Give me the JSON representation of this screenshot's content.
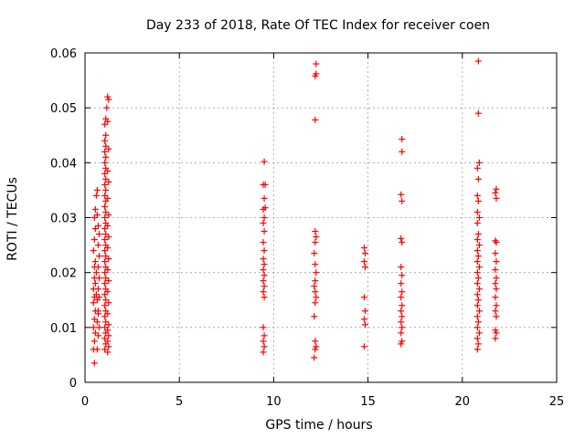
{
  "chart_data": {
    "type": "scatter",
    "title": "Day 233 of 2018, Rate Of TEC Index for receiver coen",
    "xlabel": "GPS time / hours",
    "ylabel": "ROTI / TECUs",
    "xlim": [
      0,
      25
    ],
    "ylim": [
      0,
      0.06
    ],
    "xticks": [
      "0",
      "5",
      "10",
      "15",
      "20",
      "25"
    ],
    "yticks": [
      "0",
      "0.01",
      "0.02",
      "0.03",
      "0.04",
      "0.05",
      "0.06"
    ],
    "grid": true,
    "marker": "+",
    "color": "#ff0000",
    "series": [
      {
        "points": [
          [
            0.5,
            0.0035
          ],
          [
            0.45,
            0.006
          ],
          [
            0.5,
            0.0075
          ],
          [
            0.55,
            0.009
          ],
          [
            0.45,
            0.01
          ],
          [
            0.5,
            0.0115
          ],
          [
            0.55,
            0.013
          ],
          [
            0.45,
            0.0145
          ],
          [
            0.5,
            0.0155
          ],
          [
            0.6,
            0.016
          ],
          [
            0.45,
            0.017
          ],
          [
            0.55,
            0.018
          ],
          [
            0.5,
            0.019
          ],
          [
            0.6,
            0.02
          ],
          [
            0.5,
            0.021
          ],
          [
            0.55,
            0.022
          ],
          [
            0.45,
            0.024
          ],
          [
            0.5,
            0.026
          ],
          [
            0.55,
            0.028
          ],
          [
            0.5,
            0.03
          ],
          [
            0.55,
            0.0315
          ],
          [
            0.6,
            0.034
          ],
          [
            0.65,
            0.035
          ],
          [
            0.65,
            0.006
          ],
          [
            0.7,
            0.0085
          ],
          [
            0.65,
            0.011
          ],
          [
            0.7,
            0.013
          ],
          [
            0.65,
            0.015
          ],
          [
            0.7,
            0.017
          ],
          [
            0.75,
            0.019
          ],
          [
            0.7,
            0.021
          ],
          [
            0.75,
            0.023
          ],
          [
            0.7,
            0.025
          ],
          [
            0.75,
            0.027
          ],
          [
            0.7,
            0.0285
          ],
          [
            0.65,
            0.0305
          ],
          [
            0.75,
            0.0155
          ],
          [
            0.7,
            0.0125
          ],
          [
            0.75,
            0.01
          ],
          [
            1.05,
            0.006
          ],
          [
            1.1,
            0.007
          ],
          [
            1.05,
            0.008
          ],
          [
            1.1,
            0.009
          ],
          [
            1.05,
            0.01
          ],
          [
            1.1,
            0.011
          ],
          [
            1.05,
            0.012
          ],
          [
            1.1,
            0.013
          ],
          [
            1.05,
            0.014
          ],
          [
            1.1,
            0.015
          ],
          [
            1.05,
            0.016
          ],
          [
            1.1,
            0.017
          ],
          [
            1.05,
            0.018
          ],
          [
            1.1,
            0.019
          ],
          [
            1.05,
            0.02
          ],
          [
            1.1,
            0.021
          ],
          [
            1.05,
            0.022
          ],
          [
            1.1,
            0.023
          ],
          [
            1.05,
            0.024
          ],
          [
            1.1,
            0.025
          ],
          [
            1.05,
            0.026
          ],
          [
            1.1,
            0.027
          ],
          [
            1.05,
            0.028
          ],
          [
            1.1,
            0.029
          ],
          [
            1.05,
            0.03
          ],
          [
            1.1,
            0.031
          ],
          [
            1.05,
            0.032
          ],
          [
            1.1,
            0.033
          ],
          [
            1.05,
            0.034
          ],
          [
            1.1,
            0.035
          ],
          [
            1.05,
            0.036
          ],
          [
            1.1,
            0.037
          ],
          [
            1.05,
            0.038
          ],
          [
            1.1,
            0.039
          ],
          [
            1.05,
            0.04
          ],
          [
            1.1,
            0.041
          ],
          [
            1.05,
            0.042
          ],
          [
            1.1,
            0.043
          ],
          [
            1.05,
            0.044
          ],
          [
            1.1,
            0.045
          ],
          [
            1.05,
            0.047
          ],
          [
            1.1,
            0.048
          ],
          [
            1.15,
            0.05
          ],
          [
            1.2,
            0.052
          ],
          [
            1.25,
            0.0515
          ],
          [
            1.2,
            0.0055
          ],
          [
            1.25,
            0.0065
          ],
          [
            1.2,
            0.0075
          ],
          [
            1.25,
            0.0085
          ],
          [
            1.2,
            0.0095
          ],
          [
            1.25,
            0.0105
          ],
          [
            1.2,
            0.0125
          ],
          [
            1.25,
            0.0145
          ],
          [
            1.2,
            0.0165
          ],
          [
            1.25,
            0.0185
          ],
          [
            1.2,
            0.0205
          ],
          [
            1.25,
            0.0225
          ],
          [
            1.2,
            0.0245
          ],
          [
            1.25,
            0.0265
          ],
          [
            1.2,
            0.0285
          ],
          [
            1.25,
            0.0305
          ],
          [
            1.2,
            0.0335
          ],
          [
            1.25,
            0.0365
          ],
          [
            1.2,
            0.0385
          ],
          [
            1.25,
            0.0425
          ],
          [
            1.2,
            0.0475
          ],
          [
            9.45,
            0.0055
          ],
          [
            9.5,
            0.0065
          ],
          [
            9.45,
            0.0075
          ],
          [
            9.5,
            0.0085
          ],
          [
            9.45,
            0.01
          ],
          [
            9.5,
            0.0155
          ],
          [
            9.45,
            0.0165
          ],
          [
            9.5,
            0.0175
          ],
          [
            9.45,
            0.0185
          ],
          [
            9.5,
            0.0195
          ],
          [
            9.45,
            0.0205
          ],
          [
            9.5,
            0.0215
          ],
          [
            9.45,
            0.0225
          ],
          [
            9.5,
            0.024
          ],
          [
            9.45,
            0.0255
          ],
          [
            9.5,
            0.0275
          ],
          [
            9.45,
            0.029
          ],
          [
            9.5,
            0.03
          ],
          [
            9.45,
            0.0315
          ],
          [
            9.55,
            0.0318
          ],
          [
            9.5,
            0.0335
          ],
          [
            9.45,
            0.036
          ],
          [
            9.55,
            0.036
          ],
          [
            9.5,
            0.0402
          ],
          [
            12.15,
            0.0045
          ],
          [
            12.2,
            0.006
          ],
          [
            12.25,
            0.0065
          ],
          [
            12.2,
            0.0075
          ],
          [
            12.15,
            0.012
          ],
          [
            12.2,
            0.0145
          ],
          [
            12.25,
            0.0155
          ],
          [
            12.2,
            0.0165
          ],
          [
            12.15,
            0.0175
          ],
          [
            12.2,
            0.0185
          ],
          [
            12.25,
            0.02
          ],
          [
            12.2,
            0.0215
          ],
          [
            12.15,
            0.0235
          ],
          [
            12.2,
            0.0255
          ],
          [
            12.25,
            0.0265
          ],
          [
            12.2,
            0.0275
          ],
          [
            12.2,
            0.0478
          ],
          [
            12.2,
            0.0558
          ],
          [
            12.25,
            0.0562
          ],
          [
            12.25,
            0.058
          ],
          [
            14.8,
            0.0065
          ],
          [
            14.85,
            0.0105
          ],
          [
            14.8,
            0.0115
          ],
          [
            14.85,
            0.013
          ],
          [
            14.8,
            0.0155
          ],
          [
            14.85,
            0.021
          ],
          [
            14.8,
            0.022
          ],
          [
            14.85,
            0.0235
          ],
          [
            14.8,
            0.0245
          ],
          [
            16.75,
            0.007
          ],
          [
            16.8,
            0.0075
          ],
          [
            16.75,
            0.009
          ],
          [
            16.8,
            0.01
          ],
          [
            16.75,
            0.011
          ],
          [
            16.8,
            0.012
          ],
          [
            16.75,
            0.013
          ],
          [
            16.8,
            0.014
          ],
          [
            16.75,
            0.0155
          ],
          [
            16.8,
            0.0165
          ],
          [
            16.75,
            0.018
          ],
          [
            16.8,
            0.0195
          ],
          [
            16.75,
            0.021
          ],
          [
            16.8,
            0.0255
          ],
          [
            16.75,
            0.0262
          ],
          [
            16.8,
            0.033
          ],
          [
            16.75,
            0.0342
          ],
          [
            16.8,
            0.042
          ],
          [
            16.8,
            0.0443
          ],
          [
            20.8,
            0.006
          ],
          [
            20.85,
            0.007
          ],
          [
            20.8,
            0.008
          ],
          [
            20.9,
            0.009
          ],
          [
            20.8,
            0.01
          ],
          [
            20.85,
            0.011
          ],
          [
            20.8,
            0.012
          ],
          [
            20.9,
            0.013
          ],
          [
            20.8,
            0.014
          ],
          [
            20.85,
            0.015
          ],
          [
            20.8,
            0.016
          ],
          [
            20.9,
            0.017
          ],
          [
            20.8,
            0.018
          ],
          [
            20.85,
            0.019
          ],
          [
            20.8,
            0.02
          ],
          [
            20.9,
            0.021
          ],
          [
            20.8,
            0.022
          ],
          [
            20.85,
            0.023
          ],
          [
            20.8,
            0.024
          ],
          [
            20.9,
            0.025
          ],
          [
            20.8,
            0.026
          ],
          [
            20.85,
            0.027
          ],
          [
            20.8,
            0.029
          ],
          [
            20.9,
            0.03
          ],
          [
            20.8,
            0.031
          ],
          [
            20.85,
            0.033
          ],
          [
            20.8,
            0.034
          ],
          [
            20.85,
            0.037
          ],
          [
            20.8,
            0.039
          ],
          [
            20.9,
            0.04
          ],
          [
            20.85,
            0.049
          ],
          [
            20.85,
            0.0585
          ],
          [
            21.75,
            0.008
          ],
          [
            21.8,
            0.009
          ],
          [
            21.75,
            0.0095
          ],
          [
            21.8,
            0.012
          ],
          [
            21.75,
            0.013
          ],
          [
            21.8,
            0.014
          ],
          [
            21.75,
            0.0155
          ],
          [
            21.8,
            0.017
          ],
          [
            21.75,
            0.018
          ],
          [
            21.8,
            0.019
          ],
          [
            21.75,
            0.0205
          ],
          [
            21.8,
            0.022
          ],
          [
            21.75,
            0.0235
          ],
          [
            21.8,
            0.0255
          ],
          [
            21.75,
            0.0258
          ],
          [
            21.8,
            0.0335
          ],
          [
            21.75,
            0.0345
          ],
          [
            21.8,
            0.0352
          ]
        ]
      }
    ]
  }
}
